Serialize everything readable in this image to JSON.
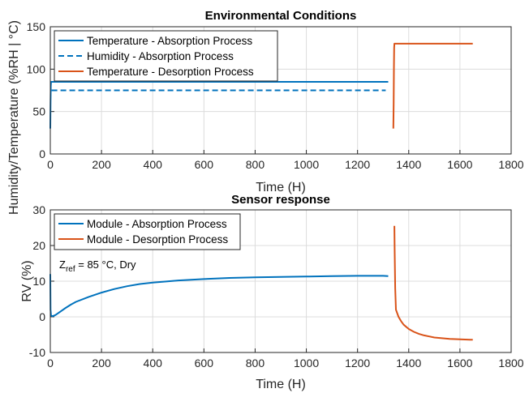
{
  "shared_ylabel": "Humidity/Temperature (%RH | °C)",
  "chart_data": [
    {
      "type": "line",
      "title": "Environmental Conditions",
      "xlabel": "Time (H)",
      "ylabel": "",
      "xlim": [
        0,
        1800
      ],
      "ylim": [
        0,
        150
      ],
      "xticks": [
        "0",
        "200",
        "400",
        "600",
        "800",
        "1000",
        "1200",
        "1400",
        "1600",
        "1800"
      ],
      "yticks": [
        "0",
        "50",
        "100",
        "150"
      ],
      "grid": true,
      "legend_position": "top-left",
      "series": [
        {
          "name": "Temperature - Absorption Process",
          "color": "#0072BD",
          "dash": "solid",
          "x": [
            0,
            1,
            2,
            3,
            1320
          ],
          "y": [
            30,
            60,
            80,
            85,
            85
          ]
        },
        {
          "name": "Humidity - Absorption Process",
          "color": "#0072BD",
          "dash": "dashed",
          "x": [
            5,
            1310
          ],
          "y": [
            75,
            75
          ]
        },
        {
          "name": "Temperature - Desorption Process",
          "color": "#D95319",
          "dash": "solid",
          "x": [
            1340,
            1341,
            1342,
            1343,
            1344,
            1650
          ],
          "y": [
            30,
            60,
            100,
            125,
            130,
            130
          ]
        }
      ]
    },
    {
      "type": "line",
      "title": "Sensor response",
      "xlabel": "Time (H)",
      "ylabel": "RV (%)",
      "xlim": [
        0,
        1800
      ],
      "ylim": [
        -10,
        30
      ],
      "xticks": [
        "0",
        "200",
        "400",
        "600",
        "800",
        "1000",
        "1200",
        "1400",
        "1600",
        "1800"
      ],
      "yticks": [
        "-10",
        "0",
        "10",
        "20",
        "30"
      ],
      "grid": true,
      "legend_position": "top-left",
      "annotation": {
        "main": "Z",
        "sub": "ref",
        "rest": " = 85 °C, Dry"
      },
      "series": [
        {
          "name": "Module - Absorption Process",
          "color": "#0072BD",
          "dash": "solid",
          "x": [
            0,
            1,
            3,
            10,
            20,
            40,
            60,
            80,
            100,
            150,
            200,
            250,
            300,
            350,
            400,
            500,
            600,
            700,
            800,
            900,
            1000,
            1100,
            1200,
            1250,
            1300,
            1320
          ],
          "y": [
            12,
            2,
            0.3,
            0.2,
            0.5,
            1.5,
            2.5,
            3.4,
            4.2,
            5.6,
            6.8,
            7.8,
            8.6,
            9.2,
            9.6,
            10.2,
            10.6,
            10.9,
            11.1,
            11.2,
            11.3,
            11.4,
            11.5,
            11.5,
            11.5,
            11.4
          ]
        },
        {
          "name": "Module - Desorption Process",
          "color": "#D95319",
          "dash": "solid",
          "x": [
            1344,
            1345,
            1347,
            1350,
            1360,
            1370,
            1380,
            1400,
            1420,
            1440,
            1460,
            1480,
            1500,
            1530,
            1560,
            1600,
            1640,
            1650
          ],
          "y": [
            25.5,
            19,
            8,
            2,
            0,
            -1.2,
            -2.2,
            -3.4,
            -4.2,
            -4.8,
            -5.2,
            -5.5,
            -5.8,
            -6.0,
            -6.2,
            -6.3,
            -6.4,
            -6.4
          ]
        }
      ]
    }
  ]
}
